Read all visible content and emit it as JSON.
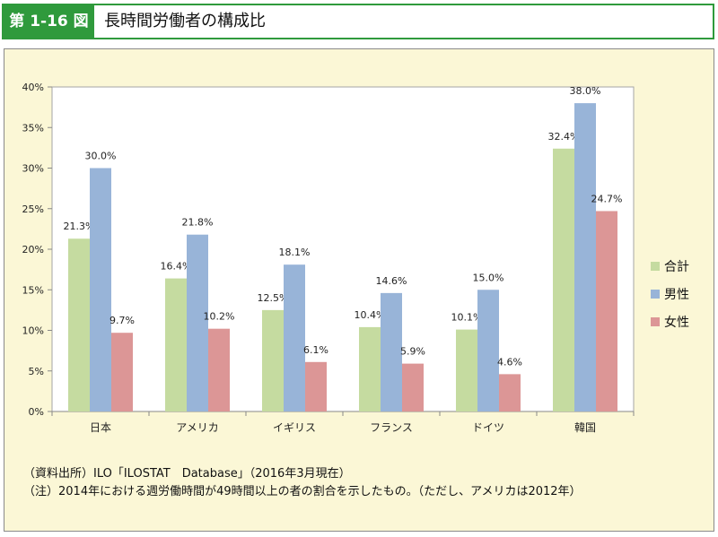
{
  "header": {
    "figure_label": "第 1-16 図",
    "title": "長時間労働者の構成比"
  },
  "colors": {
    "accent": "#2f9a3c",
    "panel_bg": "#fbf7d6",
    "series": [
      "#c5dba0",
      "#98b4d8",
      "#dc9696"
    ]
  },
  "chart_data": {
    "type": "bar",
    "categories": [
      "日本",
      "アメリカ",
      "イギリス",
      "フランス",
      "ドイツ",
      "韓国"
    ],
    "series": [
      {
        "name": "合計",
        "values": [
          21.3,
          16.4,
          12.5,
          10.4,
          10.1,
          32.4
        ],
        "labels": [
          "21.3%",
          "16.4%",
          "12.5%",
          "10.4%",
          "10.1%",
          "32.4%"
        ]
      },
      {
        "name": "男性",
        "values": [
          30.0,
          21.8,
          18.1,
          14.6,
          15.0,
          38.0
        ],
        "labels": [
          "30.0%",
          "21.8%",
          "18.1%",
          "14.6%",
          "15.0%",
          "38.0%"
        ]
      },
      {
        "name": "女性",
        "values": [
          9.7,
          10.2,
          6.1,
          5.9,
          4.6,
          24.7
        ],
        "labels": [
          "9.7%",
          "10.2%",
          "6.1%",
          "5.9%",
          "4.6%",
          "24.7%"
        ]
      }
    ],
    "yticks": [
      "0%",
      "5%",
      "10%",
      "15%",
      "20%",
      "25%",
      "30%",
      "35%",
      "40%"
    ],
    "ylim": [
      0,
      40
    ],
    "grid": false,
    "legend": "right"
  },
  "notes": {
    "source": "（資料出所）ILO「ILOSTAT　Database」（2016年3月現在）",
    "note": "（注）2014年における週労働時間が49時間以上の者の割合を示したもの。（ただし、アメリカは2012年）"
  }
}
